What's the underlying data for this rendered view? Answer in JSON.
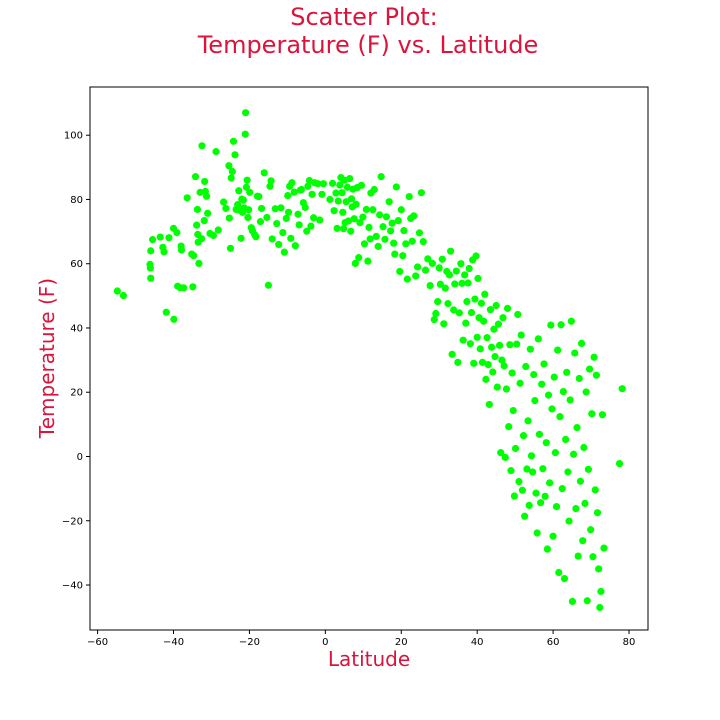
{
  "chart_data": {
    "type": "scatter",
    "title_line1": "Scatter Plot:",
    "title_line2": "Temperature (F) vs. Latitude",
    "xlabel": "Latitude",
    "ylabel": "Temperature (F)",
    "xlim": [
      -62,
      85
    ],
    "ylim": [
      -54,
      115
    ],
    "xticks": [
      -60,
      -40,
      -20,
      0,
      20,
      40,
      60,
      80
    ],
    "yticks": [
      -40,
      -20,
      0,
      20,
      40,
      60,
      80,
      100
    ],
    "grid": false,
    "colors": {
      "title": "#dc143c",
      "point": "#00ff00",
      "axes": "#000000"
    },
    "points": [
      [
        -54.8,
        51.5
      ],
      [
        -53.2,
        50.1
      ],
      [
        -46.2,
        59.8
      ],
      [
        -46.1,
        58.7
      ],
      [
        -46.0,
        64.0
      ],
      [
        -46.0,
        55.5
      ],
      [
        -45.5,
        67.5
      ],
      [
        -43.5,
        68.3
      ],
      [
        -42.8,
        65.1
      ],
      [
        -42.5,
        63.7
      ],
      [
        -41.9,
        44.9
      ],
      [
        -41.2,
        68.1
      ],
      [
        -40.0,
        71.0
      ],
      [
        -39.9,
        42.7
      ],
      [
        -39.1,
        69.7
      ],
      [
        -38.9,
        53.0
      ],
      [
        -38.2,
        52.5
      ],
      [
        -38.0,
        65.5
      ],
      [
        -37.9,
        64.3
      ],
      [
        -37.3,
        52.5
      ],
      [
        -36.4,
        80.5
      ],
      [
        -35.2,
        63.0
      ],
      [
        -34.9,
        52.8
      ],
      [
        -34.7,
        62.5
      ],
      [
        -34.2,
        87.1
      ],
      [
        -33.9,
        72.0
      ],
      [
        -33.7,
        76.9
      ],
      [
        -33.6,
        69.1
      ],
      [
        -33.5,
        66.7
      ],
      [
        -33.3,
        60.1
      ],
      [
        -33.0,
        82.2
      ],
      [
        -32.6,
        67.8
      ],
      [
        -32.5,
        96.7
      ],
      [
        -31.9,
        73.4
      ],
      [
        -31.8,
        85.6
      ],
      [
        -31.6,
        82.5
      ],
      [
        -31.3,
        81.0
      ],
      [
        -31.0,
        75.7
      ],
      [
        -30.4,
        69.4
      ],
      [
        -29.5,
        68.8
      ],
      [
        -28.8,
        94.9
      ],
      [
        -28.2,
        70.5
      ],
      [
        -26.8,
        79.2
      ],
      [
        -26.2,
        77.2
      ],
      [
        -25.4,
        90.5
      ],
      [
        -25.3,
        74.2
      ],
      [
        -25.0,
        64.8
      ],
      [
        -24.8,
        86.7
      ],
      [
        -24.5,
        88.7
      ],
      [
        -24.2,
        98.1
      ],
      [
        -23.8,
        93.9
      ],
      [
        -23.5,
        76.9
      ],
      [
        -23.1,
        78.4
      ],
      [
        -22.8,
        82.7
      ],
      [
        -22.5,
        76.6
      ],
      [
        -22.2,
        67.9
      ],
      [
        -22.0,
        80.1
      ],
      [
        -21.8,
        76.0
      ],
      [
        -21.6,
        79.8
      ],
      [
        -21.4,
        77.4
      ],
      [
        -21.1,
        100.3
      ],
      [
        -21.0,
        107.0
      ],
      [
        -20.8,
        83.8
      ],
      [
        -20.6,
        86.0
      ],
      [
        -20.4,
        74.4
      ],
      [
        -20.2,
        76.8
      ],
      [
        -19.9,
        82.2
      ],
      [
        -19.5,
        71.2
      ],
      [
        -19.2,
        70.2
      ],
      [
        -18.6,
        69.0
      ],
      [
        -18.3,
        68.4
      ],
      [
        -17.9,
        81.0
      ],
      [
        -17.5,
        80.9
      ],
      [
        -17.1,
        73.1
      ],
      [
        -16.8,
        77.2
      ],
      [
        -16.1,
        88.3
      ],
      [
        -15.4,
        74.4
      ],
      [
        -15.0,
        53.3
      ],
      [
        -14.6,
        84.1
      ],
      [
        -14.3,
        85.8
      ],
      [
        -14.0,
        67.7
      ],
      [
        -13.2,
        77.1
      ],
      [
        -12.8,
        72.5
      ],
      [
        -12.3,
        66.0
      ],
      [
        -11.7,
        77.4
      ],
      [
        -11.2,
        69.7
      ],
      [
        -10.8,
        63.6
      ],
      [
        -10.3,
        74.1
      ],
      [
        -9.9,
        81.2
      ],
      [
        -9.7,
        76.0
      ],
      [
        -9.4,
        84.1
      ],
      [
        -9.1,
        67.9
      ],
      [
        -8.8,
        85.2
      ],
      [
        -8.2,
        82.3
      ],
      [
        -7.9,
        65.6
      ],
      [
        -7.2,
        75.4
      ],
      [
        -6.9,
        72.1
      ],
      [
        -6.6,
        82.9
      ],
      [
        -6.3,
        83.1
      ],
      [
        -5.8,
        79.0
      ],
      [
        -5.3,
        77.5
      ],
      [
        -4.9,
        70.1
      ],
      [
        -4.6,
        84.1
      ],
      [
        -4.2,
        85.9
      ],
      [
        -3.8,
        71.7
      ],
      [
        -3.5,
        81.6
      ],
      [
        -3.1,
        74.3
      ],
      [
        -2.8,
        85.2
      ],
      [
        -2.0,
        84.9
      ],
      [
        -1.5,
        73.6
      ],
      [
        -0.9,
        81.6
      ],
      [
        -0.5,
        84.9
      ],
      [
        1.2,
        80.0
      ],
      [
        1.9,
        85.0
      ],
      [
        2.3,
        76.5
      ],
      [
        2.8,
        82.0
      ],
      [
        3.1,
        71.0
      ],
      [
        3.4,
        79.5
      ],
      [
        3.8,
        84.5
      ],
      [
        4.1,
        86.8
      ],
      [
        4.4,
        82.1
      ],
      [
        4.6,
        76.0
      ],
      [
        4.8,
        70.9
      ],
      [
        5.0,
        86.0
      ],
      [
        5.2,
        72.8
      ],
      [
        5.5,
        79.3
      ],
      [
        5.8,
        83.8
      ],
      [
        6.1,
        73.3
      ],
      [
        6.4,
        86.5
      ],
      [
        6.7,
        70.1
      ],
      [
        6.9,
        80.2
      ],
      [
        7.1,
        77.7
      ],
      [
        7.3,
        83.2
      ],
      [
        7.6,
        74.0
      ],
      [
        7.9,
        60.1
      ],
      [
        8.1,
        78.5
      ],
      [
        8.4,
        83.7
      ],
      [
        8.8,
        61.9
      ],
      [
        9.1,
        72.8
      ],
      [
        9.5,
        84.4
      ],
      [
        9.9,
        74.5
      ],
      [
        10.3,
        66.2
      ],
      [
        10.8,
        76.9
      ],
      [
        11.2,
        60.8
      ],
      [
        11.5,
        71.3
      ],
      [
        11.8,
        67.7
      ],
      [
        12.0,
        82.0
      ],
      [
        12.5,
        76.8
      ],
      [
        12.9,
        83.1
      ],
      [
        13.4,
        68.5
      ],
      [
        13.9,
        65.4
      ],
      [
        14.3,
        75.2
      ],
      [
        14.7,
        87.1
      ],
      [
        15.2,
        71.5
      ],
      [
        15.7,
        67.6
      ],
      [
        16.1,
        74.6
      ],
      [
        16.8,
        79.3
      ],
      [
        17.2,
        70.2
      ],
      [
        17.6,
        72.6
      ],
      [
        18.0,
        66.4
      ],
      [
        18.3,
        63.0
      ],
      [
        18.7,
        83.9
      ],
      [
        19.2,
        73.4
      ],
      [
        19.6,
        57.6
      ],
      [
        20.0,
        76.8
      ],
      [
        20.4,
        62.5
      ],
      [
        20.7,
        70.3
      ],
      [
        21.2,
        66.2
      ],
      [
        21.6,
        55.2
      ],
      [
        22.1,
        80.9
      ],
      [
        22.5,
        74.1
      ],
      [
        22.9,
        67.0
      ],
      [
        23.3,
        74.9
      ],
      [
        23.8,
        56.2
      ],
      [
        24.3,
        59.0
      ],
      [
        24.8,
        69.6
      ],
      [
        25.3,
        82.1
      ],
      [
        25.8,
        66.9
      ],
      [
        26.4,
        58.0
      ],
      [
        27.0,
        61.5
      ],
      [
        27.6,
        53.2
      ],
      [
        28.2,
        60.1
      ],
      [
        28.7,
        42.6
      ],
      [
        29.1,
        44.5
      ],
      [
        29.6,
        48.2
      ],
      [
        30.0,
        58.7
      ],
      [
        30.3,
        53.6
      ],
      [
        30.8,
        61.4
      ],
      [
        31.2,
        41.3
      ],
      [
        31.6,
        52.4
      ],
      [
        32.0,
        57.6
      ],
      [
        32.3,
        47.6
      ],
      [
        32.7,
        56.5
      ],
      [
        33.0,
        63.9
      ],
      [
        33.4,
        31.8
      ],
      [
        33.8,
        45.6
      ],
      [
        34.1,
        53.7
      ],
      [
        34.5,
        57.7
      ],
      [
        34.9,
        29.3
      ],
      [
        35.3,
        44.7
      ],
      [
        35.7,
        60.0
      ],
      [
        36.0,
        53.9
      ],
      [
        36.3,
        36.2
      ],
      [
        36.7,
        56.5
      ],
      [
        37.0,
        41.5
      ],
      [
        37.3,
        48.2
      ],
      [
        37.6,
        54.0
      ],
      [
        37.9,
        58.5
      ],
      [
        38.2,
        35.1
      ],
      [
        38.5,
        44.8
      ],
      [
        38.8,
        61.2
      ],
      [
        39.1,
        29.0
      ],
      [
        39.4,
        49.0
      ],
      [
        39.7,
        62.4
      ],
      [
        40.0,
        37.1
      ],
      [
        40.2,
        55.4
      ],
      [
        40.5,
        43.2
      ],
      [
        40.8,
        33.5
      ],
      [
        41.1,
        47.7
      ],
      [
        41.4,
        29.3
      ],
      [
        41.7,
        42.1
      ],
      [
        42.0,
        50.5
      ],
      [
        42.3,
        24.0
      ],
      [
        42.6,
        37.0
      ],
      [
        42.9,
        28.6
      ],
      [
        43.2,
        16.2
      ],
      [
        43.5,
        45.7
      ],
      [
        43.8,
        34.0
      ],
      [
        44.1,
        26.3
      ],
      [
        44.4,
        39.6
      ],
      [
        44.7,
        31.1
      ],
      [
        45.0,
        47.0
      ],
      [
        45.3,
        21.6
      ],
      [
        45.6,
        41.2
      ],
      [
        45.9,
        34.6
      ],
      [
        46.2,
        1.2
      ],
      [
        46.5,
        30.0
      ],
      [
        46.8,
        43.2
      ],
      [
        47.1,
        28.2
      ],
      [
        47.4,
        -0.3
      ],
      [
        47.7,
        21.0
      ],
      [
        48.0,
        46.1
      ],
      [
        48.3,
        9.3
      ],
      [
        48.6,
        34.8
      ],
      [
        48.9,
        -4.4
      ],
      [
        49.2,
        26.0
      ],
      [
        49.5,
        14.3
      ],
      [
        49.8,
        -12.3
      ],
      [
        50.1,
        2.5
      ],
      [
        50.4,
        35.0
      ],
      [
        50.7,
        44.2
      ],
      [
        51.0,
        -7.8
      ],
      [
        51.3,
        22.8
      ],
      [
        51.6,
        37.8
      ],
      [
        51.9,
        -10.5
      ],
      [
        52.2,
        6.5
      ],
      [
        52.5,
        -18.6
      ],
      [
        52.8,
        28.0
      ],
      [
        53.1,
        -3.9
      ],
      [
        53.4,
        11.1
      ],
      [
        53.7,
        -15.2
      ],
      [
        54.0,
        33.4
      ],
      [
        54.3,
        0.2
      ],
      [
        54.6,
        -4.8
      ],
      [
        54.9,
        25.5
      ],
      [
        55.2,
        17.4
      ],
      [
        55.5,
        -11.4
      ],
      [
        55.8,
        -23.8
      ],
      [
        56.1,
        36.6
      ],
      [
        56.4,
        6.9
      ],
      [
        56.7,
        -14.4
      ],
      [
        57.0,
        22.5
      ],
      [
        57.3,
        -3.8
      ],
      [
        57.6,
        28.8
      ],
      [
        57.9,
        -12.4
      ],
      [
        58.2,
        4.3
      ],
      [
        58.5,
        -28.8
      ],
      [
        58.8,
        19.1
      ],
      [
        59.1,
        -8.2
      ],
      [
        59.4,
        40.9
      ],
      [
        59.7,
        14.8
      ],
      [
        60.0,
        -24.8
      ],
      [
        60.3,
        24.7
      ],
      [
        60.6,
        1.2
      ],
      [
        60.9,
        -15.6
      ],
      [
        61.2,
        33.1
      ],
      [
        61.5,
        -36.1
      ],
      [
        61.8,
        12.4
      ],
      [
        62.1,
        41.0
      ],
      [
        62.4,
        -10.0
      ],
      [
        62.7,
        20.2
      ],
      [
        63.0,
        -38.0
      ],
      [
        63.3,
        5.3
      ],
      [
        63.6,
        26.2
      ],
      [
        63.9,
        -4.8
      ],
      [
        64.2,
        -20.1
      ],
      [
        64.5,
        17.6
      ],
      [
        64.8,
        42.1
      ],
      [
        65.1,
        -45.1
      ],
      [
        65.4,
        0.7
      ],
      [
        65.7,
        32.2
      ],
      [
        66.0,
        -16.2
      ],
      [
        66.3,
        9.0
      ],
      [
        66.6,
        -31.0
      ],
      [
        66.9,
        24.3
      ],
      [
        67.2,
        -7.7
      ],
      [
        67.5,
        35.2
      ],
      [
        67.8,
        -26.2
      ],
      [
        68.1,
        2.8
      ],
      [
        68.4,
        -14.6
      ],
      [
        68.7,
        20.1
      ],
      [
        69.0,
        -44.9
      ],
      [
        69.3,
        -4.0
      ],
      [
        69.6,
        27.2
      ],
      [
        69.9,
        -22.8
      ],
      [
        70.2,
        13.3
      ],
      [
        70.5,
        -31.2
      ],
      [
        70.8,
        30.9
      ],
      [
        71.1,
        -10.4
      ],
      [
        71.4,
        25.3
      ],
      [
        71.7,
        -17.5
      ],
      [
        72.0,
        -35.0
      ],
      [
        72.3,
        -47.0
      ],
      [
        72.6,
        -42.0
      ],
      [
        73.0,
        13.0
      ],
      [
        73.4,
        -28.5
      ],
      [
        77.5,
        -2.2
      ],
      [
        78.2,
        21.1
      ]
    ]
  }
}
